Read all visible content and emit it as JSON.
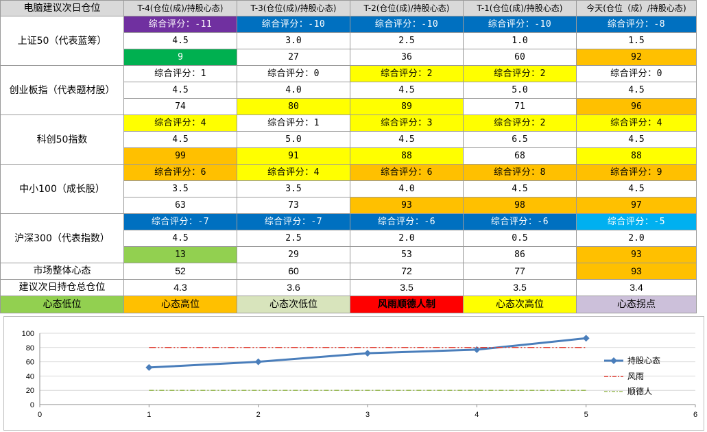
{
  "table": {
    "corner": "电脑建议次日仓位",
    "columns": [
      "T-4(仓位(成)/持股心态)",
      "T-3(仓位(成)/持股心态)",
      "T-2(仓位(成)/持股心态)",
      "T-1(仓位(成)/持股心态)",
      "今天(仓位（成）/持股心态)"
    ],
    "indices": [
      {
        "name": "上证50（代表蓝筹）",
        "scores": [
          "综合评分：-11",
          "综合评分：-10",
          "综合评分：-10",
          "综合评分：-10",
          "综合评分：-8"
        ],
        "score_colors": [
          "#7030a0",
          "#0070c0",
          "#0070c0",
          "#0070c0",
          "#0070c0"
        ],
        "positions": [
          "4.5",
          "3.0",
          "2.5",
          "1.0",
          "1.5"
        ],
        "moods": [
          "9",
          "27",
          "36",
          "60",
          "92"
        ],
        "mood_colors": [
          "#00b050",
          "#ffffff",
          "#ffffff",
          "#ffffff",
          "#ffc000"
        ]
      },
      {
        "name": "创业板指（代表题材股）",
        "scores": [
          "综合评分：1",
          "综合评分：0",
          "综合评分：2",
          "综合评分：2",
          "综合评分：0"
        ],
        "score_colors": [
          "#ffffff",
          "#ffffff",
          "#ffff00",
          "#ffff00",
          "#ffffff"
        ],
        "positions": [
          "4.5",
          "4.0",
          "4.5",
          "5.0",
          "4.5"
        ],
        "moods": [
          "74",
          "80",
          "89",
          "71",
          "96"
        ],
        "mood_colors": [
          "#ffffff",
          "#ffff00",
          "#ffff00",
          "#ffffff",
          "#ffc000"
        ]
      },
      {
        "name": "科创50指数",
        "scores": [
          "综合评分：4",
          "综合评分：1",
          "综合评分：3",
          "综合评分：2",
          "综合评分：4"
        ],
        "score_colors": [
          "#ffff00",
          "#ffffff",
          "#ffff00",
          "#ffff00",
          "#ffff00"
        ],
        "positions": [
          "4.5",
          "5.0",
          "4.5",
          "6.5",
          "4.5"
        ],
        "moods": [
          "99",
          "91",
          "88",
          "68",
          "88"
        ],
        "mood_colors": [
          "#ffc000",
          "#ffff00",
          "#ffff00",
          "#ffffff",
          "#ffff00"
        ]
      },
      {
        "name": "中小100（成长股）",
        "scores": [
          "综合评分：6",
          "综合评分：4",
          "综合评分：6",
          "综合评分：8",
          "综合评分：9"
        ],
        "score_colors": [
          "#ffc000",
          "#ffff00",
          "#ffc000",
          "#ffc000",
          "#ffc000"
        ],
        "positions": [
          "3.5",
          "3.5",
          "4.0",
          "4.5",
          "4.5"
        ],
        "moods": [
          "63",
          "73",
          "93",
          "98",
          "97"
        ],
        "mood_colors": [
          "#ffffff",
          "#ffffff",
          "#ffc000",
          "#ffc000",
          "#ffc000"
        ]
      },
      {
        "name": "沪深300（代表指数）",
        "scores": [
          "综合评分：-7",
          "综合评分：-7",
          "综合评分：-6",
          "综合评分：-6",
          "综合评分：-5"
        ],
        "score_colors": [
          "#0070c0",
          "#0070c0",
          "#0070c0",
          "#0070c0",
          "#00b0f0"
        ],
        "positions": [
          "4.5",
          "2.5",
          "2.0",
          "0.5",
          "2.0"
        ],
        "moods": [
          "13",
          "29",
          "53",
          "86",
          "93"
        ],
        "mood_colors": [
          "#92d050",
          "#ffffff",
          "#ffffff",
          "#ffffff",
          "#ffc000"
        ]
      }
    ],
    "market": {
      "label": "市场整体心态",
      "values": [
        "52",
        "60",
        "72",
        "77",
        "93"
      ],
      "colors": [
        "#ffffff",
        "#ffffff",
        "#ffffff",
        "#ffffff",
        "#ffc000"
      ]
    },
    "total": {
      "label": "建议次日持仓总仓位",
      "values": [
        "4.3",
        "3.6",
        "3.5",
        "3.5",
        "3.4"
      ]
    },
    "legend": [
      {
        "label": "心态低位",
        "color": "#92d050"
      },
      {
        "label": "心态高位",
        "color": "#ffc000"
      },
      {
        "label": "心态次低位",
        "color": "#d8e4bc"
      },
      {
        "label": "风雨顺德人制",
        "color": "#ff0000"
      },
      {
        "label": "心态次高位",
        "color": "#ffff00"
      },
      {
        "label": "心态拐点",
        "color": "#ccc0da"
      }
    ]
  },
  "chart_data": {
    "type": "line",
    "xlim": [
      0,
      6
    ],
    "ylim": [
      0,
      100
    ],
    "x_ticks": [
      "0",
      "1",
      "2",
      "3",
      "4",
      "5",
      "6"
    ],
    "y_ticks": [
      "0",
      "20",
      "40",
      "60",
      "80",
      "100"
    ],
    "grid": true,
    "legend_position": "right",
    "series": [
      {
        "name": "持股心态",
        "x": [
          1,
          2,
          3,
          4,
          5
        ],
        "y": [
          52,
          60,
          72,
          77,
          93
        ],
        "color": "#4a7ebb",
        "style": "solid-diamond"
      },
      {
        "name": "风雨",
        "x": [
          1,
          5
        ],
        "y": [
          80,
          80
        ],
        "color": "#e03c31",
        "style": "dash-dot-dot"
      },
      {
        "name": "顺德人",
        "x": [
          1,
          5
        ],
        "y": [
          20,
          20
        ],
        "color": "#9bbb59",
        "style": "dash-dot"
      }
    ]
  }
}
